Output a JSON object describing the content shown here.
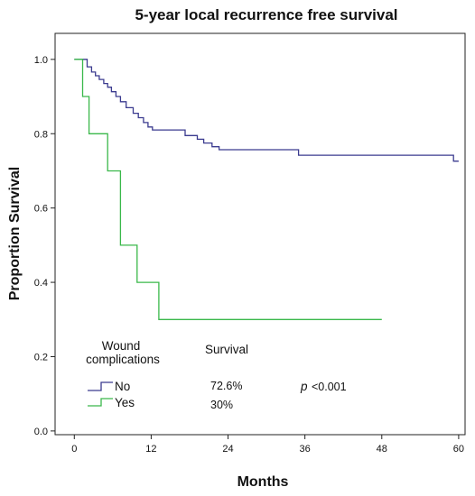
{
  "chart_data": {
    "type": "line",
    "title": "5-year local recurrence free survival",
    "xlabel": "Months",
    "ylabel": "Proportion Survival",
    "xlim": [
      -3,
      61
    ],
    "ylim": [
      -0.01,
      1.07
    ],
    "x_ticks": [
      0,
      12,
      24,
      36,
      48,
      60
    ],
    "y_ticks": [
      0.0,
      0.2,
      0.4,
      0.6,
      0.8,
      1.0
    ],
    "x_tick_labels": [
      "0",
      "12",
      "24",
      "36",
      "48",
      "60"
    ],
    "y_tick_labels": [
      "0.0",
      "0.2",
      "0.4",
      "0.6",
      "0.8",
      "1.0"
    ],
    "grid": false,
    "step": true,
    "legend": {
      "heading_line1": "Wound",
      "heading_line2": "complications",
      "survival_heading": "Survival",
      "p_symbol": "p",
      "p_value": "<0.001"
    },
    "series": [
      {
        "name": "No",
        "color": "#3b3b8f",
        "survival_label": "72.6%",
        "x": [
          0,
          2,
          2.7,
          3.3,
          3.9,
          4.6,
          5.2,
          5.8,
          6.5,
          7.2,
          8.1,
          9.2,
          10.0,
          10.8,
          11.5,
          12.2,
          13.0,
          17.3,
          19.2,
          20.2,
          21.5,
          22.6,
          23.4,
          35.0,
          59.2,
          60
        ],
        "y": [
          1.0,
          0.98,
          0.966,
          0.956,
          0.946,
          0.935,
          0.925,
          0.913,
          0.9,
          0.886,
          0.87,
          0.855,
          0.843,
          0.83,
          0.818,
          0.81,
          0.81,
          0.795,
          0.785,
          0.775,
          0.765,
          0.757,
          0.757,
          0.742,
          0.726,
          0.726
        ]
      },
      {
        "name": "Yes",
        "color": "#3ab84a",
        "survival_label": "30%",
        "x": [
          0,
          1.3,
          2.3,
          5.2,
          7.2,
          9.8,
          13.2,
          48
        ],
        "y": [
          1.0,
          0.9,
          0.8,
          0.7,
          0.5,
          0.4,
          0.3,
          0.3
        ]
      }
    ]
  }
}
